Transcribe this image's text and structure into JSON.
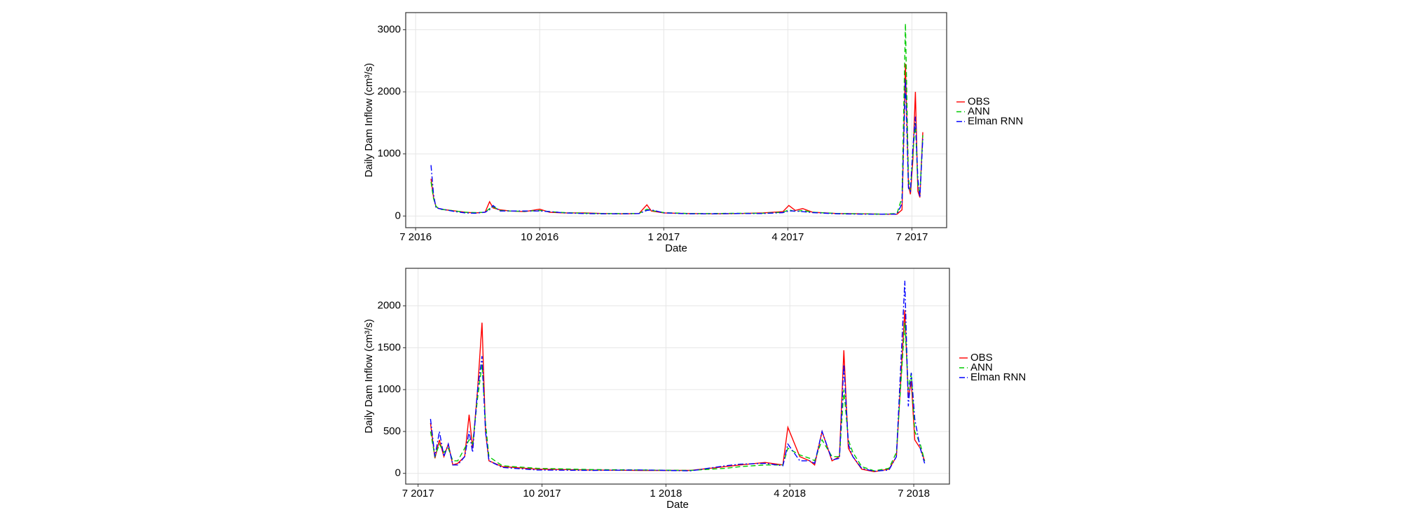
{
  "chart_data": [
    {
      "type": "line",
      "x_label": "Date",
      "y_label": "Daily Dam Inflow (cm³/s)",
      "grid": true,
      "legend": "right",
      "xlim": [
        2016.48,
        2017.57
      ],
      "ylim": [
        -188,
        3276
      ],
      "xticks": [
        {
          "value": 2016.5,
          "label": "7 2016"
        },
        {
          "value": 2016.75,
          "label": "10 2016"
        },
        {
          "value": 2017.0,
          "label": "1 2017"
        },
        {
          "value": 2017.25,
          "label": "4 2017"
        },
        {
          "value": 2017.5,
          "label": "7 2017"
        }
      ],
      "yticks": [
        0,
        1000,
        2000,
        3000
      ],
      "x": [
        2016.531,
        2016.536,
        2016.541,
        2016.547,
        2016.56,
        2016.58,
        2016.6,
        2016.62,
        2016.64,
        2016.649,
        2016.656,
        2016.67,
        2016.69,
        2016.72,
        2016.75,
        2016.77,
        2016.8,
        2016.84,
        2016.88,
        2016.92,
        2016.95,
        2016.966,
        2016.975,
        2017.0,
        2017.05,
        2017.1,
        2017.15,
        2017.2,
        2017.24,
        2017.252,
        2017.265,
        2017.28,
        2017.3,
        2017.35,
        2017.4,
        2017.44,
        2017.47,
        2017.48,
        2017.487,
        2017.493,
        2017.497,
        2017.502,
        2017.507,
        2017.512,
        2017.516,
        2017.522
      ],
      "series": [
        {
          "name": "OBS",
          "color": "#ff0000",
          "dash": "solid",
          "values": [
            600,
            300,
            150,
            120,
            100,
            80,
            60,
            50,
            60,
            230,
            130,
            100,
            80,
            70,
            110,
            60,
            50,
            50,
            40,
            35,
            40,
            180,
            80,
            50,
            40,
            35,
            40,
            50,
            70,
            170,
            90,
            120,
            60,
            40,
            35,
            30,
            30,
            100,
            2450,
            500,
            350,
            900,
            2000,
            400,
            300,
            1350
          ]
        },
        {
          "name": "ANN",
          "color": "#00cc00",
          "dash": "dashed",
          "values": [
            550,
            280,
            160,
            110,
            100,
            80,
            60,
            55,
            60,
            120,
            150,
            90,
            80,
            75,
            90,
            70,
            55,
            45,
            40,
            40,
            40,
            110,
            90,
            55,
            40,
            40,
            45,
            45,
            60,
            100,
            70,
            90,
            60,
            40,
            35,
            30,
            40,
            300,
            3100,
            600,
            400,
            1000,
            1500,
            500,
            350,
            1300
          ]
        },
        {
          "name": "Elman RNN",
          "color": "#0000ff",
          "dash": "dashdot",
          "values": [
            820,
            350,
            130,
            120,
            100,
            70,
            50,
            45,
            60,
            100,
            170,
            80,
            80,
            80,
            80,
            70,
            50,
            40,
            35,
            35,
            40,
            90,
            100,
            50,
            35,
            35,
            40,
            40,
            55,
            80,
            80,
            70,
            55,
            35,
            30,
            30,
            30,
            200,
            2200,
            450,
            400,
            1100,
            1600,
            600,
            300,
            1250
          ]
        }
      ]
    },
    {
      "type": "line",
      "x_label": "Date",
      "y_label": "Daily Dam Inflow (cm³/s)",
      "grid": true,
      "legend": "right",
      "xlim": [
        2017.475,
        2018.572
      ],
      "ylim": [
        -128,
        2449
      ],
      "xticks": [
        {
          "value": 2017.5,
          "label": "7 2017"
        },
        {
          "value": 2017.75,
          "label": "10 2017"
        },
        {
          "value": 2018.0,
          "label": "1 2018"
        },
        {
          "value": 2018.25,
          "label": "4 2018"
        },
        {
          "value": 2018.5,
          "label": "7 2018"
        }
      ],
      "yticks": [
        0,
        500,
        1000,
        1500,
        2000
      ],
      "x": [
        2017.525,
        2017.534,
        2017.543,
        2017.552,
        2017.561,
        2017.57,
        2017.58,
        2017.594,
        2017.603,
        2017.61,
        2017.62,
        2017.629,
        2017.636,
        2017.643,
        2017.67,
        2017.74,
        2017.85,
        2017.95,
        2018.05,
        2018.12,
        2018.15,
        2018.2,
        2018.236,
        2018.246,
        2018.27,
        2018.29,
        2018.3,
        2018.315,
        2018.335,
        2018.35,
        2018.359,
        2018.368,
        2018.377,
        2018.395,
        2018.42,
        2018.45,
        2018.465,
        2018.482,
        2018.489,
        2018.495,
        2018.502,
        2018.513,
        2018.522
      ],
      "series": [
        {
          "name": "OBS",
          "color": "#ff0000",
          "dash": "solid",
          "values": [
            600,
            180,
            400,
            200,
            350,
            100,
            120,
            200,
            700,
            300,
            1000,
            1800,
            500,
            150,
            80,
            50,
            40,
            35,
            35,
            80,
            100,
            130,
            100,
            550,
            200,
            150,
            100,
            500,
            150,
            200,
            1470,
            300,
            200,
            50,
            20,
            50,
            200,
            1950,
            900,
            1100,
            400,
            300,
            150
          ]
        },
        {
          "name": "ANN",
          "color": "#00cc00",
          "dash": "dashed",
          "values": [
            500,
            200,
            350,
            250,
            300,
            150,
            150,
            300,
            400,
            350,
            900,
            1300,
            600,
            200,
            90,
            60,
            45,
            40,
            35,
            60,
            80,
            100,
            100,
            300,
            220,
            180,
            150,
            400,
            200,
            200,
            1000,
            400,
            250,
            80,
            30,
            60,
            250,
            1800,
            1000,
            1200,
            500,
            350,
            150
          ]
        },
        {
          "name": "Elman RNN",
          "color": "#0000ff",
          "dash": "dashdot",
          "values": [
            650,
            200,
            500,
            200,
            350,
            100,
            100,
            200,
            500,
            250,
            1000,
            1400,
            500,
            150,
            70,
            40,
            35,
            40,
            30,
            90,
            110,
            120,
            90,
            350,
            150,
            150,
            120,
            500,
            160,
            180,
            1300,
            350,
            200,
            60,
            25,
            40,
            200,
            2300,
            800,
            1200,
            650,
            300,
            120
          ]
        }
      ]
    }
  ]
}
